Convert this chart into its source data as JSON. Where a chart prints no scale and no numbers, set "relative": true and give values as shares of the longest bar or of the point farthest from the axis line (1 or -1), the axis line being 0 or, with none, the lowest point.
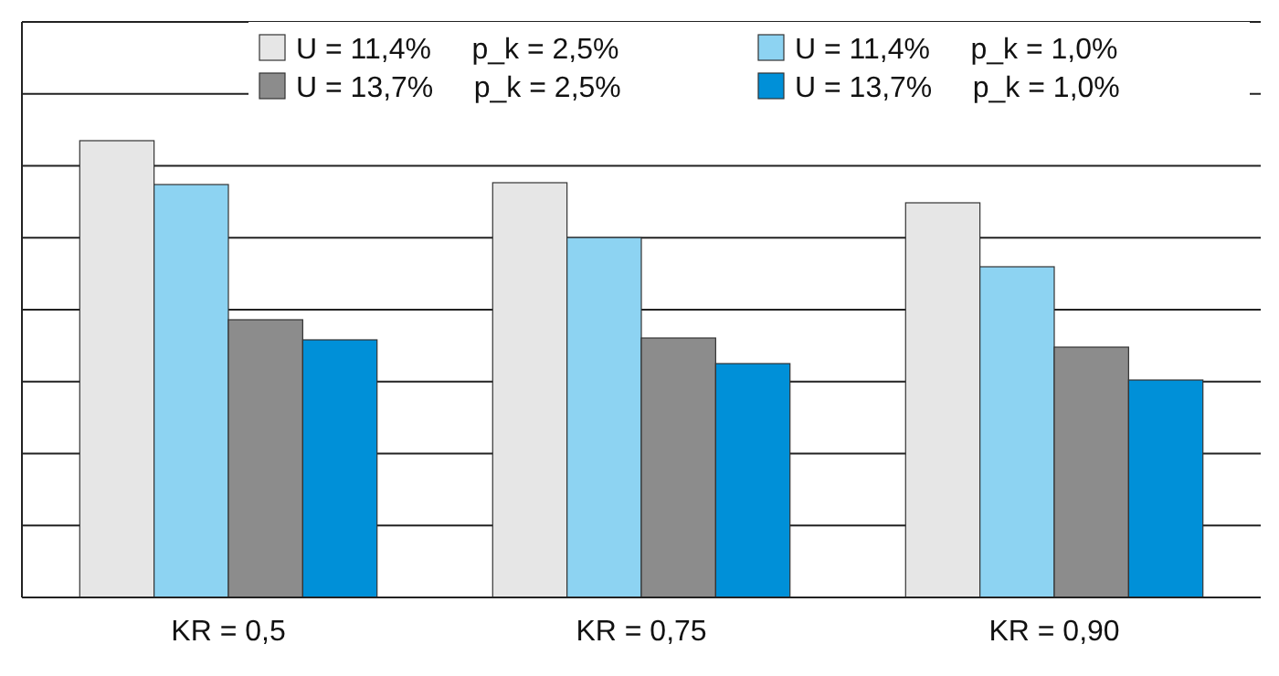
{
  "chart_data": {
    "type": "bar",
    "relative": true,
    "categories": [
      "KR = 0,5",
      "KR = 0,75",
      "KR = 0,90"
    ],
    "series": [
      {
        "name": "U = 11,4%     p_k = 2,5%",
        "color": "#e6e6e6",
        "values": [
          1,
          0.908,
          0.864
        ]
      },
      {
        "name": "U = 11,4%     p_k = 1,0%",
        "color": "#8dd3f2",
        "values": [
          0.904,
          0.788,
          0.724
        ]
      },
      {
        "name": "U = 13,7%     p_k = 2,5%",
        "color": "#8c8c8c",
        "values": [
          0.608,
          0.568,
          0.548
        ]
      },
      {
        "name": "U = 13,7%     p_k = 1,0%",
        "color": "#0090d8",
        "values": [
          0.564,
          0.512,
          0.476
        ]
      }
    ],
    "grid": true,
    "legend": "top right"
  }
}
